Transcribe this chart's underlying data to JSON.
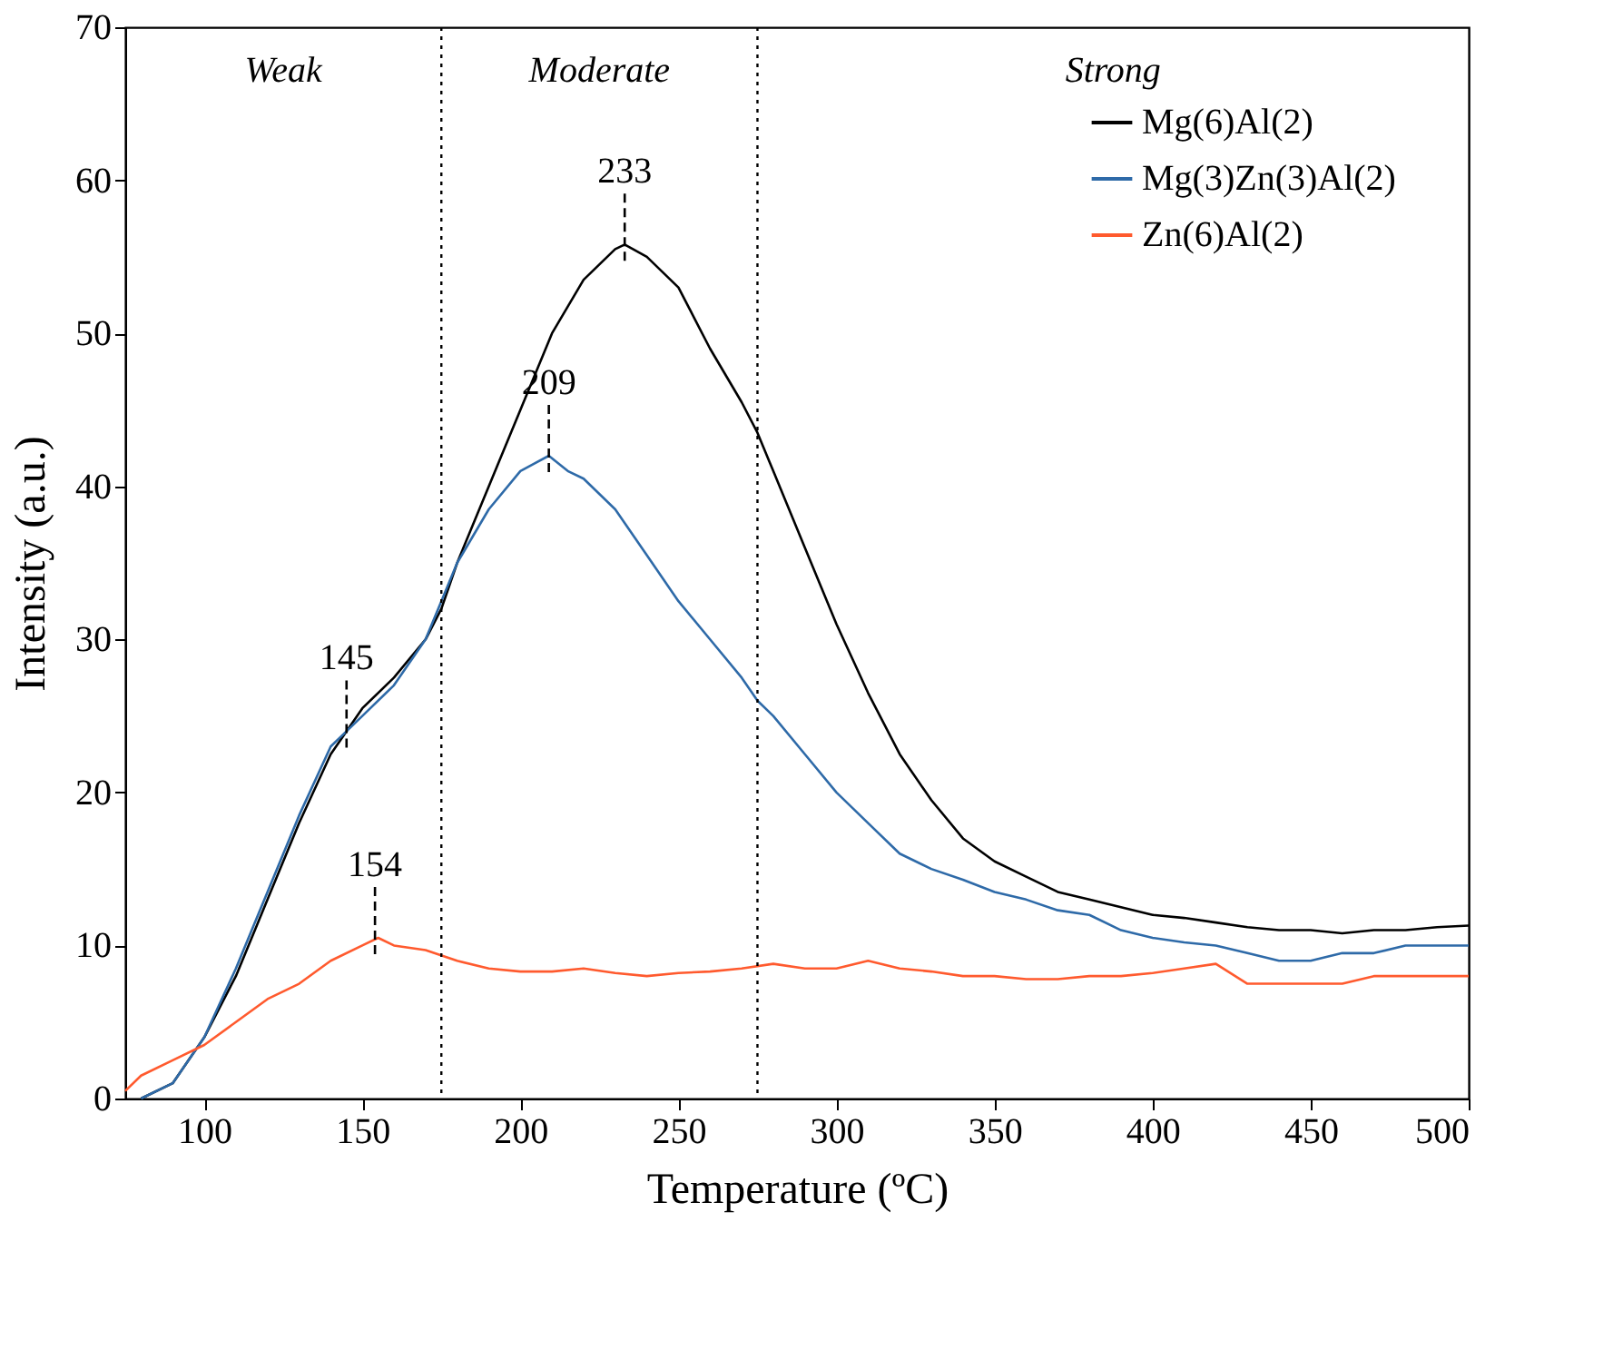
{
  "chart_data": {
    "type": "line",
    "xlabel": "Temperature (ºC)",
    "ylabel": "Intensity (a.u.)",
    "xlim": [
      75,
      500
    ],
    "xticks": [
      100,
      150,
      200,
      250,
      300,
      350,
      400,
      450,
      500
    ],
    "ylim": [
      0,
      70
    ],
    "yticks": [
      0,
      10,
      20,
      30,
      40,
      50,
      60,
      70
    ],
    "grid": false,
    "legend": "top right",
    "marker": "none",
    "line_style": "solid",
    "series": [
      {
        "name": "Mg(6)Al(2)",
        "color": "#000000",
        "x": [
          80,
          90,
          100,
          110,
          120,
          130,
          140,
          145,
          150,
          160,
          170,
          175,
          180,
          190,
          200,
          210,
          220,
          230,
          233,
          240,
          250,
          260,
          270,
          275,
          280,
          290,
          300,
          310,
          320,
          330,
          340,
          350,
          360,
          370,
          380,
          390,
          400,
          410,
          420,
          430,
          440,
          450,
          460,
          470,
          480,
          490,
          500
        ],
        "values": [
          0,
          1,
          4,
          8,
          13,
          18,
          22.5,
          24,
          25.5,
          27.5,
          30,
          32,
          35,
          40,
          45,
          50,
          53.5,
          55.5,
          55.8,
          55,
          53,
          49,
          45.5,
          43.5,
          41,
          36,
          31,
          26.5,
          22.5,
          19.5,
          17,
          15.5,
          14.5,
          13.5,
          13,
          12.5,
          12,
          11.8,
          11.5,
          11.2,
          11,
          11,
          10.8,
          11,
          11,
          11.2,
          11.3
        ]
      },
      {
        "name": "Mg(3)Zn(3)Al(2)",
        "color": "#2e6aa8",
        "x": [
          80,
          90,
          100,
          110,
          120,
          130,
          140,
          145,
          150,
          160,
          170,
          175,
          180,
          190,
          200,
          209,
          215,
          220,
          230,
          240,
          250,
          260,
          270,
          275,
          280,
          290,
          300,
          310,
          320,
          330,
          340,
          350,
          360,
          370,
          380,
          390,
          400,
          410,
          420,
          430,
          440,
          450,
          460,
          470,
          480,
          490,
          500
        ],
        "values": [
          0,
          1,
          4,
          8.5,
          13.5,
          18.5,
          23,
          24,
          25,
          27,
          30,
          32.5,
          35,
          38.5,
          41,
          42,
          41,
          40.5,
          38.5,
          35.5,
          32.5,
          30,
          27.5,
          26,
          25,
          22.5,
          20,
          18,
          16,
          15,
          14.3,
          13.5,
          13,
          12.3,
          12,
          11,
          10.5,
          10.2,
          10,
          9.5,
          9,
          9,
          9.5,
          9.5,
          10,
          10,
          10
        ]
      },
      {
        "name": "Zn(6)Al(2)",
        "color": "#ff5a2e",
        "x": [
          75,
          80,
          90,
          100,
          110,
          120,
          130,
          140,
          150,
          155,
          160,
          170,
          180,
          190,
          200,
          210,
          220,
          230,
          240,
          250,
          260,
          270,
          280,
          290,
          300,
          310,
          320,
          330,
          340,
          350,
          360,
          370,
          380,
          390,
          400,
          410,
          420,
          430,
          440,
          450,
          460,
          470,
          480,
          490,
          500
        ],
        "values": [
          0.5,
          1.5,
          2.5,
          3.5,
          5,
          6.5,
          7.5,
          9,
          10,
          10.5,
          10,
          9.7,
          9,
          8.5,
          8.3,
          8.3,
          8.5,
          8.2,
          8,
          8.2,
          8.3,
          8.5,
          8.8,
          8.5,
          8.5,
          9,
          8.5,
          8.3,
          8,
          8,
          7.8,
          7.8,
          8,
          8,
          8.2,
          8.5,
          8.8,
          7.5,
          7.5,
          7.5,
          7.5,
          8,
          8,
          8,
          8
        ]
      }
    ],
    "ref_lines": [
      {
        "axis": "x",
        "value": 175,
        "line_style": "dotted",
        "color": "#000000"
      },
      {
        "axis": "x",
        "value": 275,
        "line_style": "dotted",
        "color": "#000000"
      }
    ],
    "annotations": [
      {
        "text": "233",
        "x": 233,
        "y": 55.8
      },
      {
        "text": "209",
        "x": 209,
        "y": 42
      },
      {
        "text": "145",
        "x": 145,
        "y": 24
      },
      {
        "text": "154",
        "x": 154,
        "y": 10.5
      },
      "Weak",
      "Moderate",
      "Strong"
    ]
  }
}
